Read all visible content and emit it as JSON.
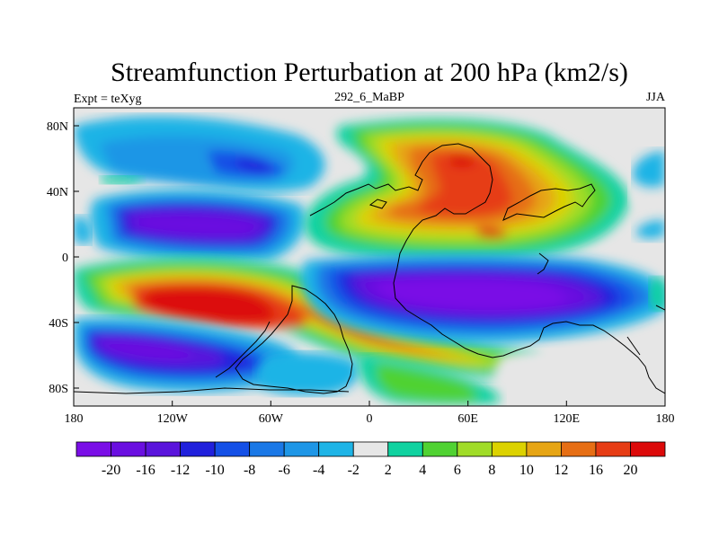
{
  "title": "Streamfunction Perturbation at 200 hPa (km2/s)",
  "left_label": "Expt = teXyg",
  "center_label": "292_6_MaBP",
  "right_label": "JJA",
  "lon_ticks": [
    "180",
    "120W",
    "60W",
    "0",
    "60E",
    "120E",
    "180"
  ],
  "lat_ticks": [
    "80N",
    "40N",
    "0",
    "40S",
    "80S"
  ],
  "colorbar": {
    "colors": [
      "#7a0ee6",
      "#6a0fe0",
      "#5a14dc",
      "#2020dc",
      "#1450e6",
      "#1a78e6",
      "#1e96e6",
      "#1eb4e6",
      "#e6e6e6",
      "#10d2a0",
      "#50d232",
      "#a0dc28",
      "#dcd200",
      "#e6a514",
      "#e66e14",
      "#e63c14",
      "#dc0a0a"
    ],
    "labels": [
      "-20",
      "-16",
      "-12",
      "-10",
      "-8",
      "-6",
      "-4",
      "-2",
      "2",
      "4",
      "6",
      "8",
      "10",
      "12",
      "16",
      "20"
    ]
  }
}
